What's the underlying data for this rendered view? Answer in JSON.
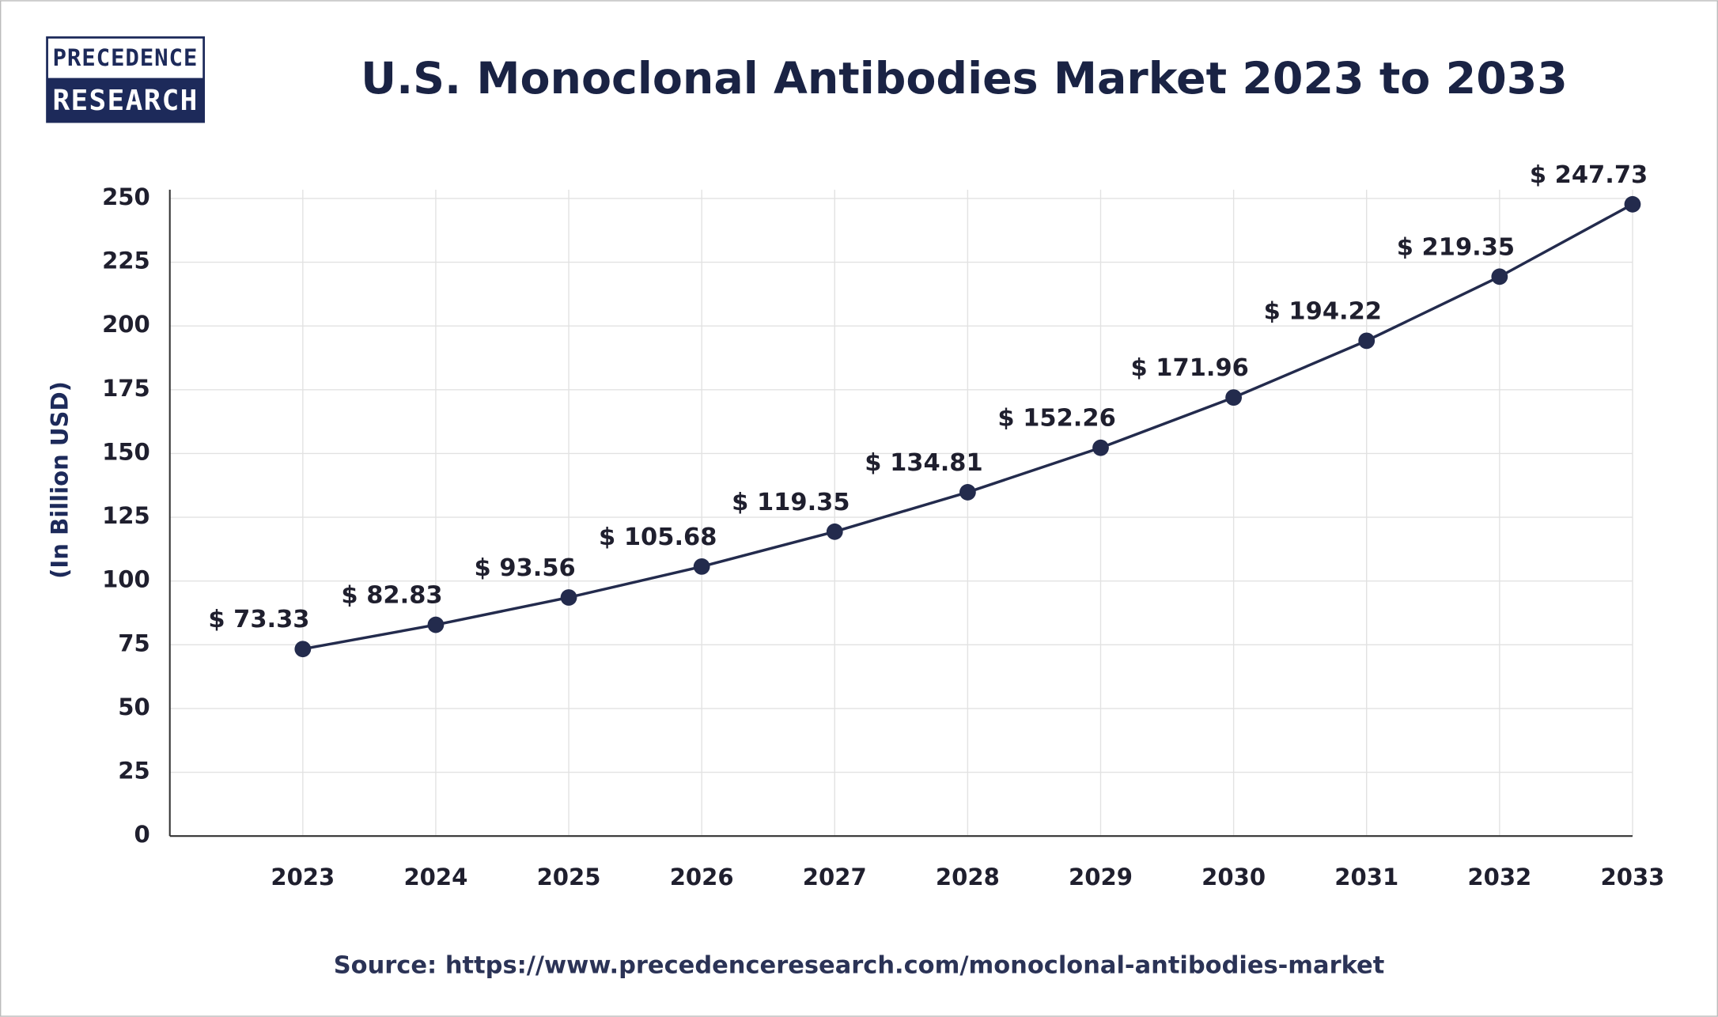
{
  "logo": {
    "line1": "PRECEDENCE",
    "line2": "RESEARCH"
  },
  "chart_data": {
    "type": "line",
    "title": "U.S. Monoclonal Antibodies Market 2023 to 2033",
    "y_label": "(In Billion USD)",
    "source": "Source: https://www.precedenceresearch.com/monoclonal-antibodies-market",
    "categories": [
      "2023",
      "2024",
      "2025",
      "2026",
      "2027",
      "2028",
      "2029",
      "2030",
      "2031",
      "2032",
      "2033"
    ],
    "values": [
      73.33,
      82.83,
      93.56,
      105.68,
      119.35,
      134.81,
      152.26,
      171.96,
      194.22,
      219.35,
      247.73
    ],
    "value_labels": [
      "$ 73.33",
      "$ 82.83",
      "$ 93.56",
      "$ 105.68",
      "$ 119.35",
      "$ 134.81",
      "$ 152.26",
      "$ 171.96",
      "$ 194.22",
      "$ 219.35",
      "$ 247.73"
    ],
    "color": "#232b4d",
    "ylim": [
      0,
      250
    ],
    "yticks": [
      0,
      25,
      50,
      75,
      100,
      125,
      150,
      175,
      200,
      225,
      250
    ],
    "grid": true
  }
}
